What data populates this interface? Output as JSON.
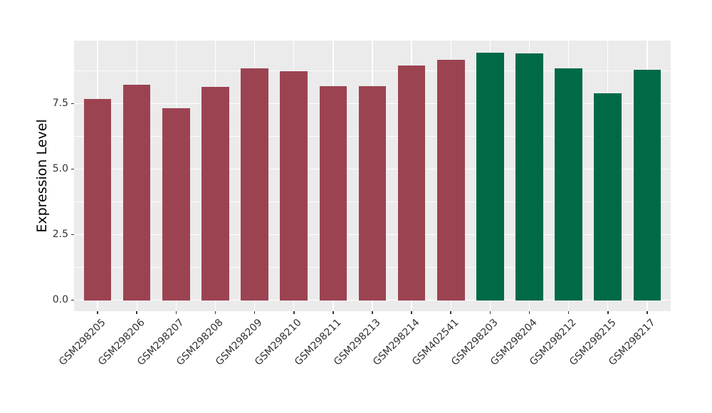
{
  "figure": {
    "background_color": "#FFFFFF"
  },
  "chart_data": {
    "type": "bar",
    "title": "",
    "xlabel": "",
    "ylabel": "Expression Level",
    "categories": [
      "GSM298205",
      "GSM298206",
      "GSM298207",
      "GSM298208",
      "GSM298209",
      "GSM298210",
      "GSM298211",
      "GSM298213",
      "GSM298214",
      "GSM402541",
      "GSM298203",
      "GSM298204",
      "GSM298212",
      "GSM298215",
      "GSM298217"
    ],
    "values": [
      7.68,
      8.21,
      7.32,
      8.14,
      8.85,
      8.74,
      8.17,
      8.17,
      8.95,
      9.17,
      9.44,
      9.42,
      8.85,
      7.89,
      8.79
    ],
    "bar_groups": [
      "A",
      "A",
      "A",
      "A",
      "A",
      "A",
      "A",
      "A",
      "A",
      "A",
      "B",
      "B",
      "B",
      "B",
      "B"
    ],
    "group_colors": {
      "A": "#9C4352",
      "B": "#006A46"
    },
    "y_ticks": [
      {
        "value": 0.0,
        "label": "0.0"
      },
      {
        "value": 2.5,
        "label": "2.5"
      },
      {
        "value": 5.0,
        "label": "5.0"
      },
      {
        "value": 7.5,
        "label": "7.5"
      }
    ],
    "y_minor_ticks": [
      1.25,
      3.75,
      6.25,
      8.75
    ],
    "ylim": [
      -0.42,
      9.9
    ],
    "x_tick_rotation_deg": 45,
    "grid": true,
    "legend_position": "none",
    "panel_background": "#EBEBEB",
    "grid_color": "#FFFFFF",
    "tick_text_color": "#333333",
    "bar_width_fraction": 0.7
  }
}
